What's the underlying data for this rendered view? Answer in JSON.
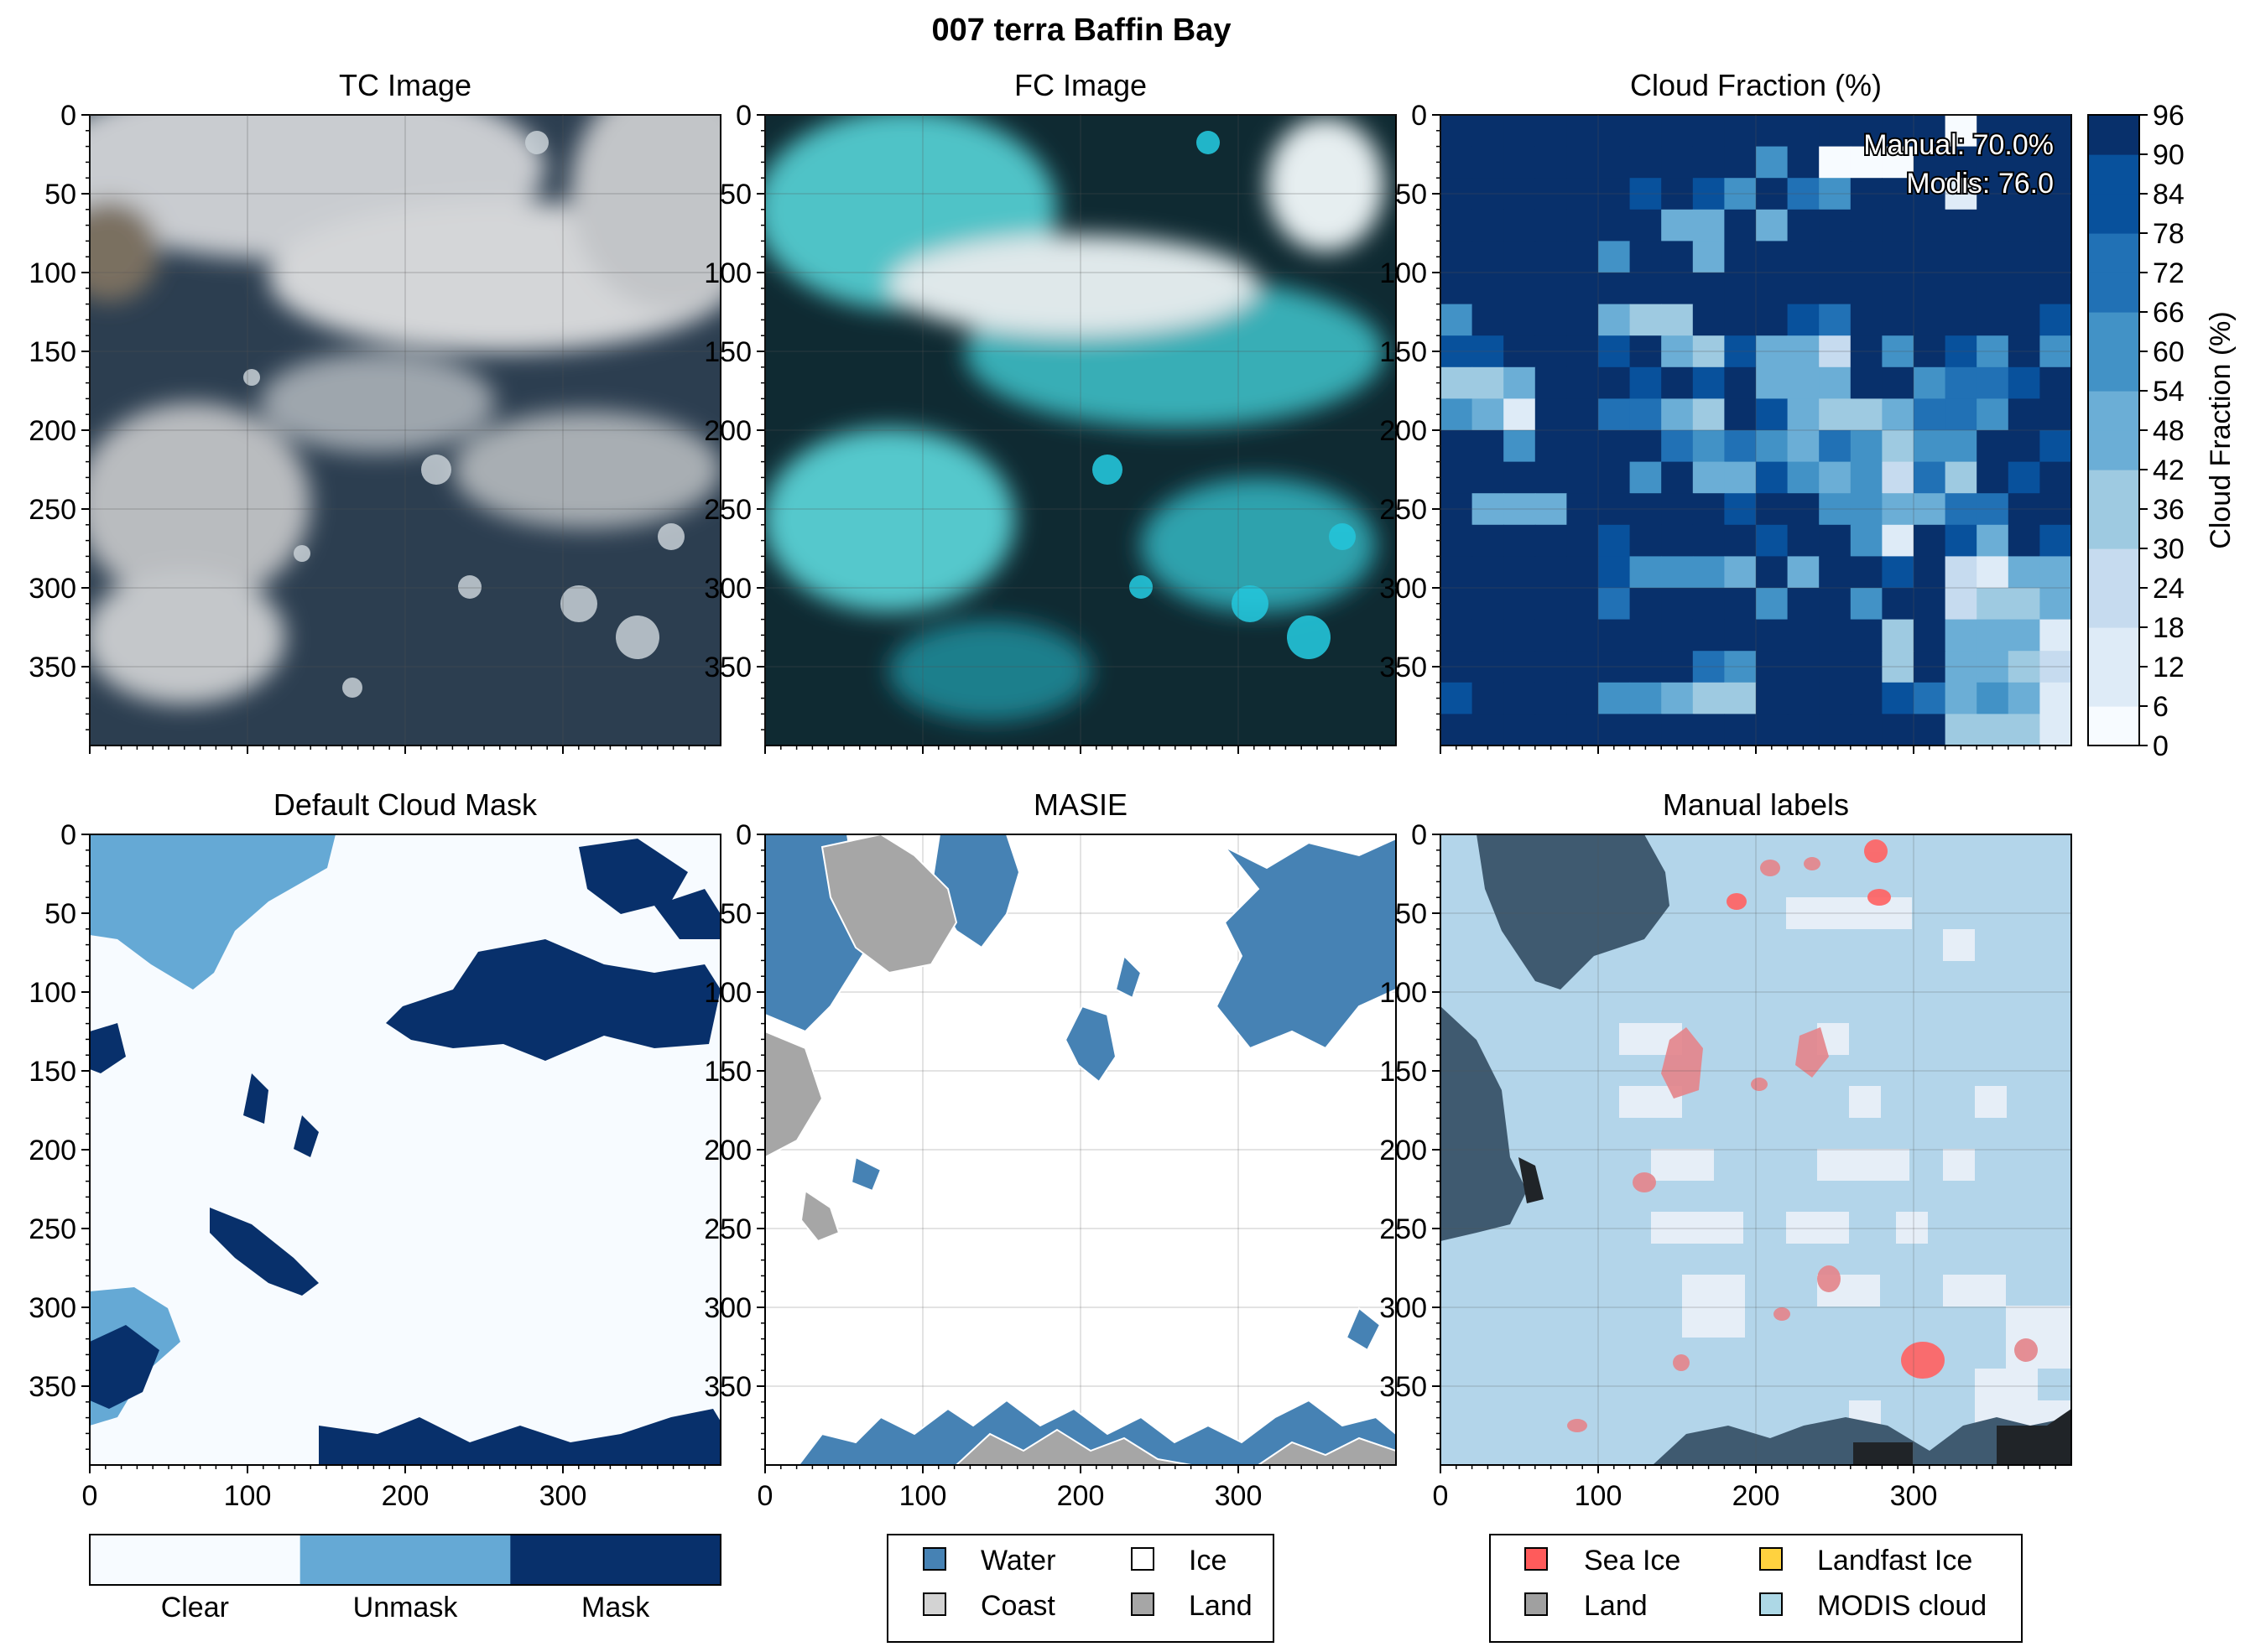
{
  "figure": {
    "title": "007 terra Baffin Bay"
  },
  "colors": {
    "blues": [
      "#f7fbff",
      "#deebf7",
      "#c6dbef",
      "#9ecae1",
      "#6baed6",
      "#4292c6",
      "#2171b5",
      "#08519c",
      "#08306b"
    ],
    "clear": "#f7fbff",
    "unmask": "#65a9d5",
    "mask": "#08306b",
    "water": "#4682b4",
    "ice": "#ffffff",
    "coast": "#d3d3d3",
    "masie_land": "#a6a6a6",
    "sea_ice": "#ff5b5b",
    "land_label": "#a0a0a0",
    "landfast": "#ffd23f",
    "modis_cloud": "#add8e6",
    "manual_land": "#3f5a70",
    "manual_dark": "#202428"
  },
  "chart_data": [
    {
      "panel": "tc",
      "type": "image",
      "title": "TC Image",
      "xlim": [
        0,
        400
      ],
      "ylim": [
        400,
        0
      ],
      "x_ticks": [
        0,
        100,
        200,
        300
      ],
      "y_ticks": [
        0,
        50,
        100,
        150,
        200,
        250,
        300,
        350
      ],
      "x_ticklabels_shown": false,
      "grid": true
    },
    {
      "panel": "fc",
      "type": "image",
      "title": "FC Image",
      "xlim": [
        0,
        400
      ],
      "ylim": [
        400,
        0
      ],
      "x_ticks": [
        0,
        100,
        200,
        300
      ],
      "y_ticks": [
        0,
        50,
        100,
        150,
        200,
        250,
        300,
        350
      ],
      "x_ticklabels_shown": false,
      "grid": true
    },
    {
      "panel": "cf",
      "type": "heatmap",
      "title": "Cloud Fraction (%)",
      "annotations": [
        "Manual: 70.0%",
        "Modis: 76.0"
      ],
      "colorbar": {
        "label": "Cloud Fraction (%)",
        "min": 0,
        "max": 96,
        "step": 6,
        "ticks": [
          0,
          6,
          12,
          18,
          24,
          30,
          36,
          42,
          48,
          54,
          60,
          66,
          72,
          78,
          84,
          90,
          96
        ]
      },
      "grid_cells": 20,
      "xlim": [
        0,
        400
      ],
      "ylim": [
        400,
        0
      ],
      "x_ticks": [
        0,
        100,
        200,
        300
      ],
      "y_ticks": [
        0,
        50,
        100,
        150,
        200,
        250,
        300,
        350
      ],
      "x_ticklabels_shown": false,
      "grid": true,
      "values": [
        [
          96,
          96,
          96,
          96,
          96,
          96,
          96,
          96,
          96,
          96,
          96,
          96,
          96,
          96,
          96,
          96,
          0,
          96,
          96,
          96
        ],
        [
          96,
          96,
          96,
          96,
          96,
          96,
          96,
          96,
          96,
          96,
          60,
          96,
          0,
          0,
          0,
          96,
          96,
          96,
          96,
          96
        ],
        [
          96,
          96,
          96,
          96,
          96,
          96,
          84,
          96,
          84,
          60,
          96,
          72,
          60,
          96,
          96,
          96,
          6,
          96,
          96,
          96
        ],
        [
          96,
          96,
          96,
          96,
          96,
          96,
          96,
          42,
          42,
          96,
          42,
          90,
          96,
          96,
          96,
          96,
          96,
          96,
          96,
          96
        ],
        [
          96,
          96,
          96,
          96,
          96,
          60,
          96,
          96,
          48,
          96,
          96,
          96,
          96,
          96,
          96,
          96,
          96,
          96,
          96,
          96
        ],
        [
          96,
          96,
          96,
          96,
          96,
          96,
          96,
          96,
          96,
          96,
          96,
          96,
          96,
          96,
          96,
          96,
          96,
          96,
          96,
          96
        ],
        [
          60,
          96,
          96,
          96,
          96,
          48,
          36,
          30,
          96,
          90,
          96,
          84,
          72,
          96,
          96,
          96,
          96,
          96,
          96,
          84
        ],
        [
          84,
          84,
          96,
          96,
          96,
          84,
          96,
          48,
          30,
          84,
          48,
          42,
          18,
          90,
          60,
          96,
          84,
          60,
          96,
          60
        ],
        [
          36,
          36,
          48,
          96,
          96,
          96,
          84,
          96,
          84,
          96,
          48,
          48,
          48,
          96,
          96,
          54,
          66,
          66,
          84,
          96
        ],
        [
          60,
          48,
          12,
          96,
          96,
          66,
          66,
          42,
          36,
          96,
          84,
          42,
          36,
          36,
          48,
          66,
          66,
          60,
          96,
          96
        ],
        [
          96,
          96,
          60,
          96,
          96,
          96,
          90,
          66,
          60,
          66,
          60,
          48,
          66,
          60,
          30,
          60,
          60,
          96,
          96,
          84
        ],
        [
          96,
          96,
          96,
          96,
          96,
          96,
          60,
          96,
          48,
          48,
          84,
          60,
          48,
          60,
          24,
          66,
          30,
          96,
          84,
          96
        ],
        [
          96,
          48,
          48,
          48,
          96,
          96,
          96,
          96,
          96,
          84,
          90,
          90,
          60,
          60,
          48,
          48,
          66,
          66,
          96,
          96
        ],
        [
          96,
          96,
          96,
          96,
          96,
          84,
          96,
          96,
          96,
          96,
          84,
          96,
          96,
          60,
          6,
          96,
          84,
          48,
          96,
          84
        ],
        [
          96,
          96,
          96,
          96,
          96,
          84,
          60,
          60,
          60,
          48,
          96,
          48,
          96,
          96,
          84,
          96,
          18,
          6,
          42,
          48
        ],
        [
          96,
          96,
          96,
          96,
          96,
          66,
          96,
          96,
          96,
          96,
          60,
          96,
          96,
          60,
          96,
          96,
          18,
          30,
          30,
          42
        ],
        [
          96,
          96,
          96,
          96,
          96,
          96,
          96,
          96,
          96,
          96,
          96,
          96,
          96,
          96,
          30,
          96,
          48,
          48,
          48,
          12
        ],
        [
          96,
          96,
          96,
          96,
          96,
          96,
          96,
          96,
          66,
          60,
          96,
          96,
          96,
          96,
          30,
          96,
          48,
          48,
          36,
          18
        ],
        [
          84,
          96,
          96,
          96,
          96,
          60,
          60,
          48,
          36,
          36,
          96,
          96,
          96,
          96,
          84,
          66,
          48,
          60,
          48,
          12
        ],
        [
          96,
          96,
          96,
          96,
          96,
          96,
          96,
          96,
          96,
          96,
          96,
          96,
          96,
          96,
          96,
          96,
          36,
          36,
          36,
          12
        ]
      ]
    },
    {
      "panel": "dcm",
      "type": "image",
      "title": "Default Cloud Mask",
      "xlim": [
        0,
        400
      ],
      "ylim": [
        400,
        0
      ],
      "x_ticks": [
        0,
        100,
        200,
        300
      ],
      "y_ticks": [
        0,
        50,
        100,
        150,
        200,
        250,
        300,
        350
      ],
      "x_ticklabels_shown": true,
      "grid": false,
      "categories": [
        "Clear",
        "Unmask",
        "Mask"
      ]
    },
    {
      "panel": "masie",
      "type": "image",
      "title": "MASIE",
      "xlim": [
        0,
        400
      ],
      "ylim": [
        400,
        0
      ],
      "x_ticks": [
        0,
        100,
        200,
        300
      ],
      "y_ticks": [
        0,
        50,
        100,
        150,
        200,
        250,
        300,
        350
      ],
      "x_ticklabels_shown": true,
      "grid": true,
      "legend": {
        "items": [
          "Water",
          "Ice",
          "Coast",
          "Land"
        ],
        "position": "below"
      }
    },
    {
      "panel": "manual",
      "type": "image",
      "title": "Manual labels",
      "xlim": [
        0,
        400
      ],
      "ylim": [
        400,
        0
      ],
      "x_ticks": [
        0,
        100,
        200,
        300
      ],
      "y_ticks": [
        0,
        50,
        100,
        150,
        200,
        250,
        300,
        350
      ],
      "x_ticklabels_shown": true,
      "grid": true,
      "legend": {
        "items": [
          "Sea Ice",
          "Landfast Ice",
          "Land",
          "MODIS cloud"
        ],
        "position": "below"
      }
    }
  ]
}
